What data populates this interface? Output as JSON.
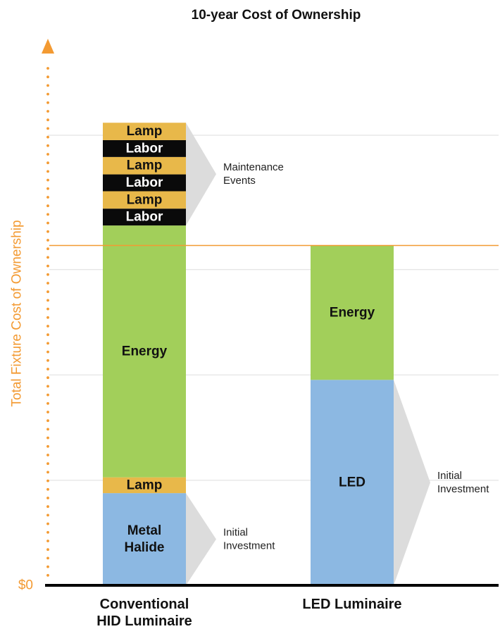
{
  "chart_data": {
    "type": "bar",
    "stacked": true,
    "title": "10-year Cost of Ownership",
    "ylabel": "Total Fixture Cost of Ownership",
    "y_tick_labels": [
      "$0"
    ],
    "categories": [
      "Conventional HID Luminaire",
      "LED Luminaire"
    ],
    "category_lines": [
      [
        "Conventional",
        "HID Luminaire"
      ],
      [
        "LED Luminaire"
      ]
    ],
    "ylim": [
      0,
      100
    ],
    "gridlines": [
      20,
      40,
      60
    ],
    "reference_line": 64.5,
    "grid": true,
    "stacks": [
      {
        "category": "Conventional HID Luminaire",
        "segments": [
          {
            "label": [
              "Metal",
              "Halide"
            ],
            "value": 17.5,
            "color": "#8cb8e2",
            "text_color": "#111111"
          },
          {
            "label": [
              "Lamp"
            ],
            "value": 3.0,
            "color": "#e8b84a",
            "text_color": "#111111"
          },
          {
            "label": [
              "Energy"
            ],
            "value": 47.8,
            "color": "#a2cf5a",
            "text_color": "#111111"
          },
          {
            "label": [
              "Labor"
            ],
            "value": 3.2,
            "color": "#0a0a0a",
            "text_color": "#ffffff"
          },
          {
            "label": [
              "Lamp"
            ],
            "value": 3.3,
            "color": "#e8b84a",
            "text_color": "#111111"
          },
          {
            "label": [
              "Labor"
            ],
            "value": 3.2,
            "color": "#0a0a0a",
            "text_color": "#ffffff"
          },
          {
            "label": [
              "Lamp"
            ],
            "value": 3.3,
            "color": "#e8b84a",
            "text_color": "#111111"
          },
          {
            "label": [
              "Labor"
            ],
            "value": 3.2,
            "color": "#0a0a0a",
            "text_color": "#ffffff"
          },
          {
            "label": [
              "Lamp"
            ],
            "value": 3.3,
            "color": "#e8b84a",
            "text_color": "#111111"
          }
        ]
      },
      {
        "category": "LED Luminaire",
        "segments": [
          {
            "label": [
              "LED"
            ],
            "value": 39.0,
            "color": "#8cb8e2",
            "text_color": "#111111"
          },
          {
            "label": [
              "Energy"
            ],
            "value": 25.5,
            "color": "#a2cf5a",
            "text_color": "#111111"
          }
        ]
      }
    ],
    "annotations": [
      {
        "text": [
          "Maintenance",
          "Events"
        ],
        "bar": 0,
        "from": 68.3,
        "to": 87.8
      },
      {
        "text": [
          "Initial",
          "Investment"
        ],
        "bar": 0,
        "from": 0,
        "to": 17.5
      },
      {
        "text": [
          "Initial",
          "Investment"
        ],
        "bar": 1,
        "from": 0,
        "to": 39.0
      }
    ],
    "colors": {
      "accent": "#f39a32",
      "axis": "#000000",
      "grid": "#dddddd",
      "callout": "#dcdcdc"
    }
  }
}
